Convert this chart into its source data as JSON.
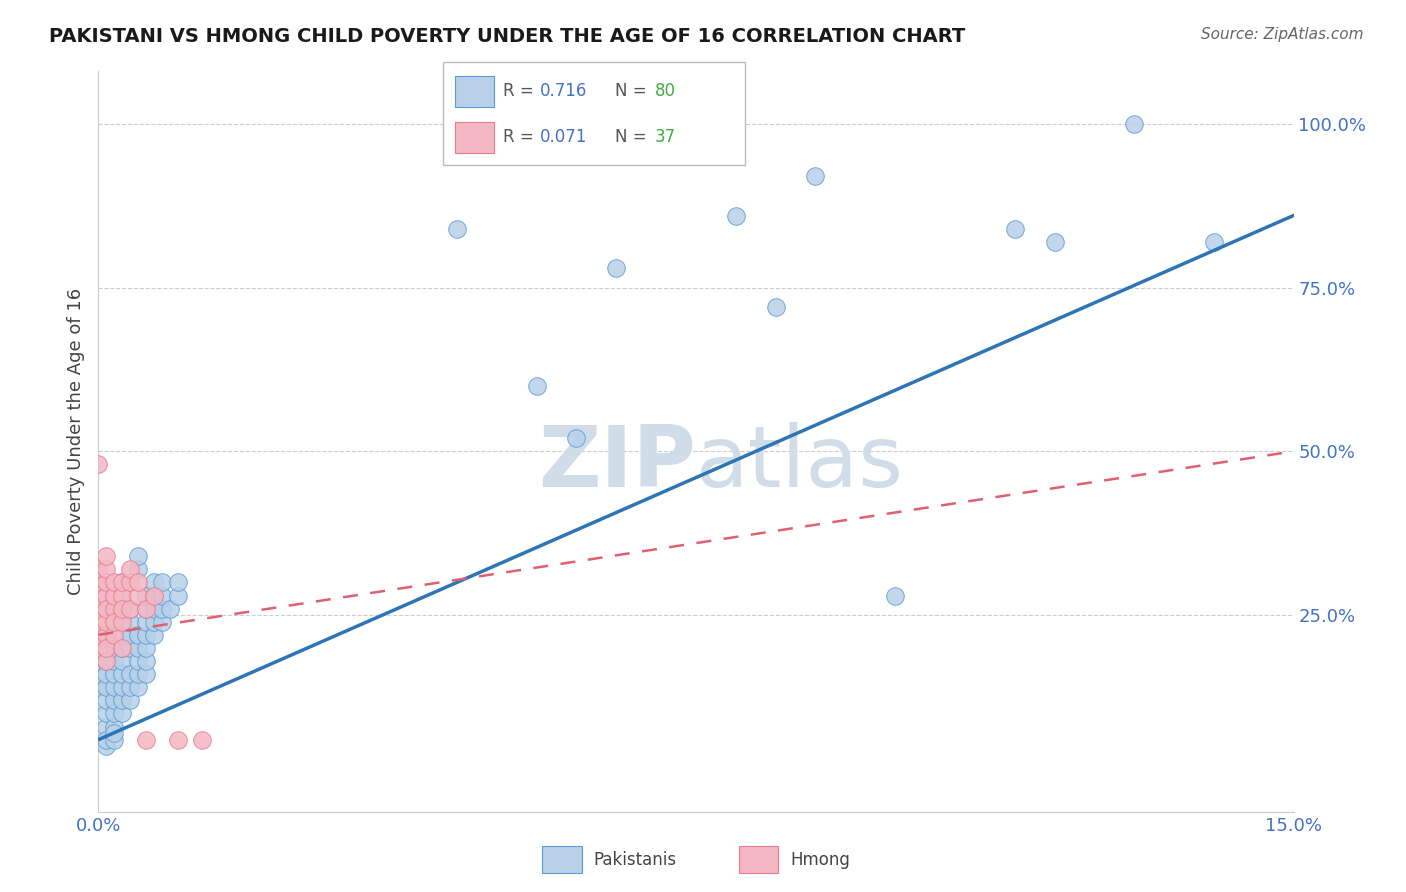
{
  "title": "PAKISTANI VS HMONG CHILD POVERTY UNDER THE AGE OF 16 CORRELATION CHART",
  "source": "Source: ZipAtlas.com",
  "ylabel": "Child Poverty Under the Age of 16",
  "xlim": [
    0.0,
    0.15
  ],
  "ylim": [
    -0.05,
    1.08
  ],
  "r_pakistani": 0.716,
  "n_pakistani": 80,
  "r_hmong": 0.071,
  "n_hmong": 37,
  "pakistani_color": "#b8d0e8",
  "pakistani_edge": "#5b9bd5",
  "hmong_color": "#f4b8c4",
  "hmong_edge": "#e87a8a",
  "pakistani_line_color": "#2e75b6",
  "hmong_line_color": "#e06070",
  "legend_r_color": "#4472c4",
  "legend_n_color": "#44aa44",
  "watermark_color": "#d0dce8",
  "pakistani_data": [
    [
      0.0,
      0.14
    ],
    [
      0.0,
      0.16
    ],
    [
      0.0,
      0.18
    ],
    [
      0.0,
      0.2
    ],
    [
      0.001,
      0.08
    ],
    [
      0.001,
      0.1
    ],
    [
      0.001,
      0.12
    ],
    [
      0.001,
      0.14
    ],
    [
      0.001,
      0.16
    ],
    [
      0.001,
      0.18
    ],
    [
      0.001,
      0.2
    ],
    [
      0.001,
      0.22
    ],
    [
      0.001,
      0.05
    ],
    [
      0.001,
      0.06
    ],
    [
      0.002,
      0.08
    ],
    [
      0.002,
      0.1
    ],
    [
      0.002,
      0.12
    ],
    [
      0.002,
      0.14
    ],
    [
      0.002,
      0.16
    ],
    [
      0.002,
      0.18
    ],
    [
      0.002,
      0.2
    ],
    [
      0.002,
      0.22
    ],
    [
      0.002,
      0.06
    ],
    [
      0.002,
      0.07
    ],
    [
      0.003,
      0.1
    ],
    [
      0.003,
      0.12
    ],
    [
      0.003,
      0.14
    ],
    [
      0.003,
      0.16
    ],
    [
      0.003,
      0.18
    ],
    [
      0.003,
      0.2
    ],
    [
      0.003,
      0.22
    ],
    [
      0.003,
      0.24
    ],
    [
      0.003,
      0.26
    ],
    [
      0.003,
      0.28
    ],
    [
      0.003,
      0.3
    ],
    [
      0.004,
      0.12
    ],
    [
      0.004,
      0.14
    ],
    [
      0.004,
      0.16
    ],
    [
      0.004,
      0.2
    ],
    [
      0.004,
      0.22
    ],
    [
      0.004,
      0.24
    ],
    [
      0.004,
      0.26
    ],
    [
      0.005,
      0.14
    ],
    [
      0.005,
      0.16
    ],
    [
      0.005,
      0.18
    ],
    [
      0.005,
      0.2
    ],
    [
      0.005,
      0.22
    ],
    [
      0.005,
      0.32
    ],
    [
      0.005,
      0.34
    ],
    [
      0.006,
      0.16
    ],
    [
      0.006,
      0.18
    ],
    [
      0.006,
      0.2
    ],
    [
      0.006,
      0.22
    ],
    [
      0.006,
      0.24
    ],
    [
      0.006,
      0.26
    ],
    [
      0.006,
      0.28
    ],
    [
      0.007,
      0.22
    ],
    [
      0.007,
      0.24
    ],
    [
      0.007,
      0.26
    ],
    [
      0.007,
      0.28
    ],
    [
      0.007,
      0.3
    ],
    [
      0.008,
      0.24
    ],
    [
      0.008,
      0.26
    ],
    [
      0.008,
      0.28
    ],
    [
      0.008,
      0.3
    ],
    [
      0.009,
      0.26
    ],
    [
      0.01,
      0.28
    ],
    [
      0.01,
      0.3
    ],
    [
      0.045,
      0.84
    ],
    [
      0.055,
      0.6
    ],
    [
      0.06,
      0.52
    ],
    [
      0.065,
      0.78
    ],
    [
      0.08,
      0.86
    ],
    [
      0.085,
      0.72
    ],
    [
      0.09,
      0.92
    ],
    [
      0.1,
      0.28
    ],
    [
      0.115,
      0.84
    ],
    [
      0.13,
      1.0
    ],
    [
      0.12,
      0.82
    ],
    [
      0.14,
      0.82
    ]
  ],
  "hmong_data": [
    [
      0.0,
      0.48
    ],
    [
      0.0,
      0.26
    ],
    [
      0.0,
      0.28
    ],
    [
      0.0,
      0.3
    ],
    [
      0.0,
      0.32
    ],
    [
      0.0,
      0.2
    ],
    [
      0.0,
      0.22
    ],
    [
      0.0,
      0.24
    ],
    [
      0.001,
      0.28
    ],
    [
      0.001,
      0.3
    ],
    [
      0.001,
      0.32
    ],
    [
      0.001,
      0.34
    ],
    [
      0.001,
      0.22
    ],
    [
      0.001,
      0.24
    ],
    [
      0.001,
      0.26
    ],
    [
      0.001,
      0.18
    ],
    [
      0.001,
      0.2
    ],
    [
      0.002,
      0.26
    ],
    [
      0.002,
      0.28
    ],
    [
      0.002,
      0.3
    ],
    [
      0.002,
      0.22
    ],
    [
      0.002,
      0.24
    ],
    [
      0.003,
      0.28
    ],
    [
      0.003,
      0.3
    ],
    [
      0.003,
      0.24
    ],
    [
      0.003,
      0.26
    ],
    [
      0.003,
      0.2
    ],
    [
      0.004,
      0.3
    ],
    [
      0.004,
      0.32
    ],
    [
      0.004,
      0.26
    ],
    [
      0.005,
      0.28
    ],
    [
      0.005,
      0.3
    ],
    [
      0.006,
      0.26
    ],
    [
      0.006,
      0.06
    ],
    [
      0.007,
      0.28
    ],
    [
      0.01,
      0.06
    ],
    [
      0.013,
      0.06
    ]
  ],
  "pak_line": [
    0.0,
    0.15,
    0.06,
    0.86
  ],
  "hmong_line": [
    0.0,
    0.15,
    0.22,
    0.5
  ]
}
